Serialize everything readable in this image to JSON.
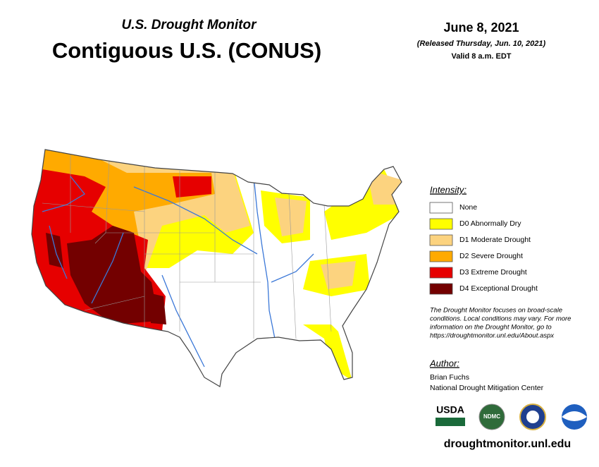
{
  "header": {
    "subtitle": "U.S. Drought Monitor",
    "title": "Contiguous U.S. (CONUS)",
    "date": "June 8, 2021",
    "released": "(Released Thursday, Jun. 10, 2021)",
    "valid": "Valid 8 a.m. EDT"
  },
  "legend": {
    "title": "Intensity:",
    "items": [
      {
        "label": "None",
        "color": "#ffffff"
      },
      {
        "label": "D0 Abnormally Dry",
        "color": "#ffff00"
      },
      {
        "label": "D1 Moderate Drought",
        "color": "#fcd37f"
      },
      {
        "label": "D2 Severe Drought",
        "color": "#ffaa00"
      },
      {
        "label": "D3 Extreme Drought",
        "color": "#e60000"
      },
      {
        "label": "D4 Exceptional Drought",
        "color": "#730000"
      }
    ]
  },
  "note": [
    "The Drought Monitor focuses on broad-scale",
    "conditions. Local conditions may vary. For more",
    "information on the Drought Monitor, go to",
    "https://droughtmonitor.unl.edu/About.aspx"
  ],
  "author": {
    "title": "Author:",
    "name": "Brian Fuchs",
    "org": "National Drought Mitigation Center"
  },
  "logos": [
    "USDA",
    "NDMC"
  ],
  "url": "droughtmonitor.unl.edu"
}
